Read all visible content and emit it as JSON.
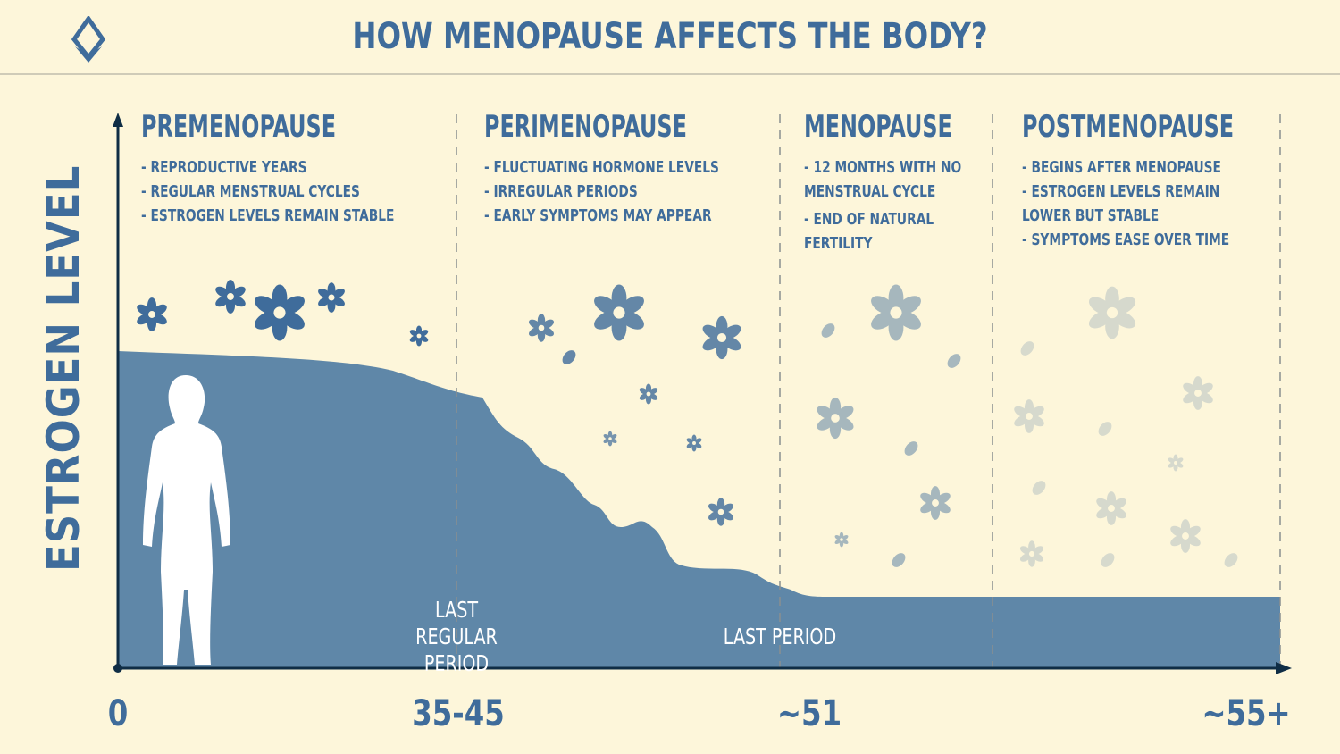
{
  "header": {
    "title": "HOW MENOPAUSE AFFECTS THE BODY?",
    "logo_icon": "drop-diamond-icon"
  },
  "colors": {
    "background": "#fdf6da",
    "primary": "#3f6c9b",
    "area_fill": "#5f87a8",
    "axis": "#0f2d45"
  },
  "phases": [
    {
      "title": "PREMENOPAUSE",
      "bullets": [
        "REPRODUCTIVE YEARS",
        "REGULAR MENSTRUAL CYCLES",
        "ESTROGEN LEVELS REMAIN STABLE"
      ]
    },
    {
      "title": "PERIMENOPAUSE",
      "bullets": [
        "FLUCTUATING HORMONE LEVELS",
        "IRREGULAR PERIODS",
        "EARLY SYMPTOMS MAY APPEAR"
      ]
    },
    {
      "title": "MENOPAUSE",
      "bullets": [
        "12 MONTHS WITH NO MENSTRUAL CYCLE",
        "END OF NATURAL FERTILITY"
      ]
    },
    {
      "title": "POSTMENOPAUSE",
      "bullets": [
        "BEGINS AFTER MENOPAUSE",
        "ESTROGEN LEVELS REMAIN LOWER BUT STABLE",
        "SYMPTOMS EASE OVER TIME"
      ]
    }
  ],
  "chart_data": {
    "type": "area",
    "ylabel": "ESTROGEN LEVEL",
    "xlabel": "",
    "x_ticks": [
      "0",
      "35-45",
      "~51",
      "~55+"
    ],
    "series": [
      {
        "values_trend": "stable-high, then fluctuating decline, then low stable"
      }
    ],
    "annotations": [
      "LAST REGULAR PERIOD",
      "LAST PERIOD"
    ],
    "grid": false,
    "phase_dividers": "dashed vertical lines"
  }
}
